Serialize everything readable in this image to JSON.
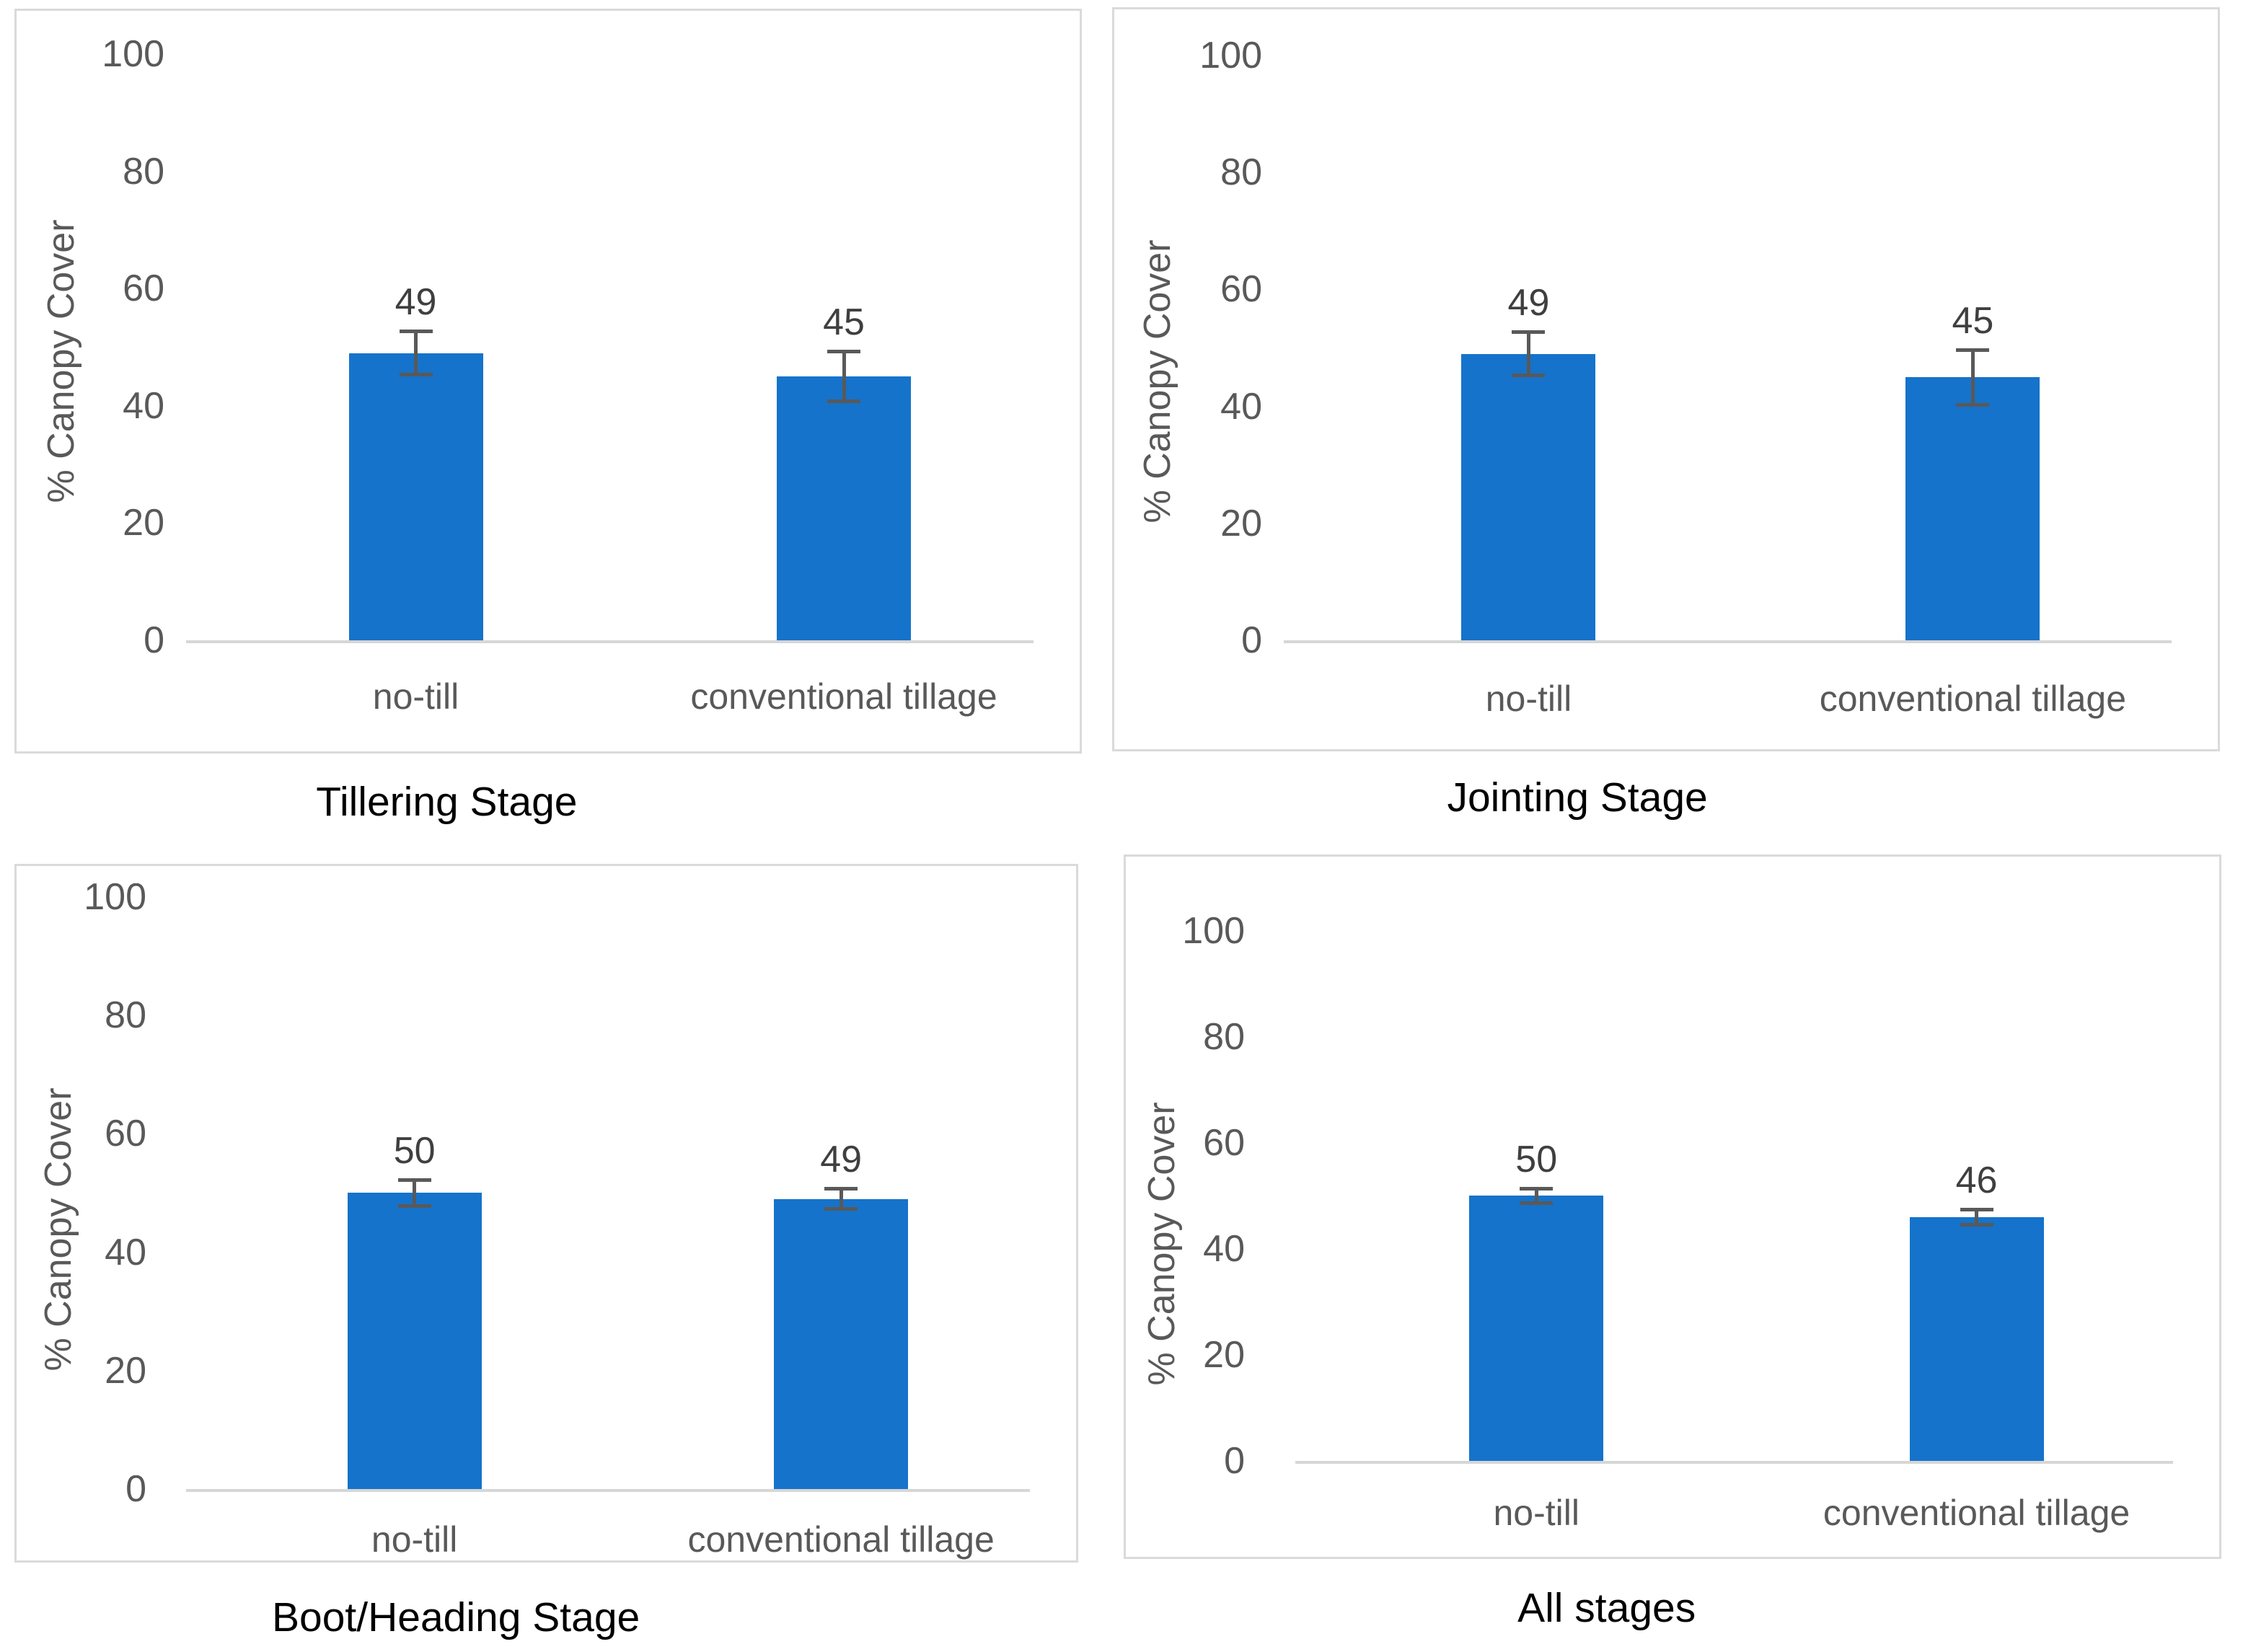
{
  "figure": {
    "description_labels": {
      "y_axis_title": "% Canopy Cover"
    }
  },
  "styles": {
    "bar_color": "#1573CB",
    "error_bar_color": "#595959",
    "axis_line_color": "#d6d6d6",
    "tick_label_color": "#595959",
    "category_label_color": "#595959",
    "value_label_color": "#3f3f3f",
    "title_color": "#000000",
    "panel_border_color": "#dadada",
    "background_color": "#ffffff"
  },
  "chart_data": [
    {
      "id": "tillering",
      "type": "bar",
      "title": "Tillering Stage",
      "ylabel": "% Canopy Cover",
      "categories": [
        "no-till",
        "conventional tillage"
      ],
      "values": [
        49,
        45
      ],
      "data_labels": [
        "49",
        "45"
      ],
      "errors": [
        4,
        4.5
      ],
      "yticks": [
        "100",
        "80",
        "60",
        "40",
        "20",
        "0"
      ],
      "ytick_values": [
        100,
        80,
        60,
        40,
        20,
        0
      ],
      "ylim": [
        0,
        100
      ],
      "grid": false,
      "legend": "none"
    },
    {
      "id": "jointing",
      "type": "bar",
      "title": "Jointing Stage",
      "ylabel": "% Canopy Cover",
      "categories": [
        "no-till",
        "conventional tillage"
      ],
      "values": [
        49,
        45
      ],
      "data_labels": [
        "49",
        "45"
      ],
      "errors": [
        4,
        5
      ],
      "yticks": [
        "100",
        "80",
        "60",
        "40",
        "20",
        "0"
      ],
      "ytick_values": [
        100,
        80,
        60,
        40,
        20,
        0
      ],
      "ylim": [
        0,
        100
      ],
      "grid": false,
      "legend": "none"
    },
    {
      "id": "boot-heading",
      "type": "bar",
      "title": "Boot/Heading Stage",
      "ylabel": "% Canopy Cover",
      "categories": [
        "no-till",
        "conventional tillage"
      ],
      "values": [
        50,
        49
      ],
      "data_labels": [
        "50",
        "49"
      ],
      "errors": [
        2.5,
        2
      ],
      "yticks": [
        "100",
        "80",
        "60",
        "40",
        "20",
        "0"
      ],
      "ytick_values": [
        100,
        80,
        60,
        40,
        20,
        0
      ],
      "ylim": [
        0,
        100
      ],
      "grid": false,
      "legend": "none"
    },
    {
      "id": "all-stages",
      "type": "bar",
      "title": "All stages",
      "ylabel": "% Canopy Cover",
      "categories": [
        "no-till",
        "conventional tillage"
      ],
      "values": [
        50,
        46
      ],
      "data_labels": [
        "50",
        "46"
      ],
      "errors": [
        1.7,
        1.8
      ],
      "yticks": [
        "100",
        "80",
        "60",
        "40",
        "20",
        "0"
      ],
      "ytick_values": [
        100,
        80,
        60,
        40,
        20,
        0
      ],
      "ylim": [
        0,
        100
      ],
      "grid": false,
      "legend": "none"
    }
  ]
}
